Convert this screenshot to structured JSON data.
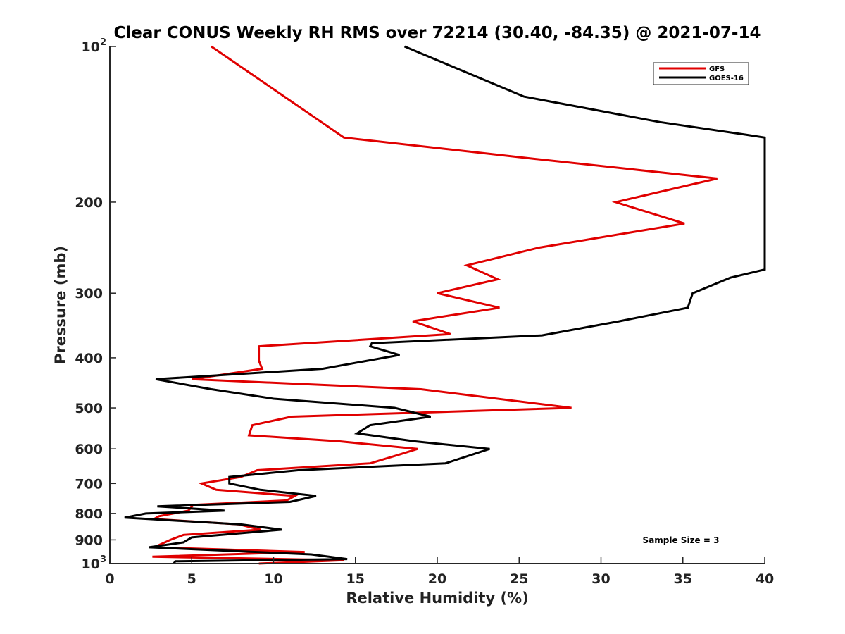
{
  "chart_data": {
    "type": "line",
    "title": "Clear CONUS Weekly RH RMS over 72214 (30.40, -84.35) @ 2021-07-14",
    "xlabel": "Relative Humidity (%)",
    "ylabel": "Pressure (mb)",
    "xlim": [
      0,
      40
    ],
    "ylim": [
      1000,
      100
    ],
    "yscale": "log",
    "grid": false,
    "legend_position": "top-right",
    "x_ticks": [
      0,
      5,
      10,
      15,
      20,
      25,
      30,
      35,
      40
    ],
    "y_ticks": [
      {
        "value": 100,
        "base": "10",
        "exp": "2"
      },
      {
        "value": 200,
        "label": "200"
      },
      {
        "value": 300,
        "label": "300"
      },
      {
        "value": 400,
        "label": "400"
      },
      {
        "value": 500,
        "label": "500"
      },
      {
        "value": 600,
        "label": "600"
      },
      {
        "value": 700,
        "label": "700"
      },
      {
        "value": 800,
        "label": "800"
      },
      {
        "value": 900,
        "label": "900"
      },
      {
        "value": 1000,
        "base": "10",
        "exp": "3"
      }
    ],
    "series": [
      {
        "name": "GFS",
        "color": "#e00000",
        "points": [
          [
            6.2,
            100
          ],
          [
            14.3,
            150
          ],
          [
            26.0,
            165
          ],
          [
            37.1,
            180
          ],
          [
            30.9,
            200
          ],
          [
            35.1,
            220
          ],
          [
            26.2,
            245
          ],
          [
            21.8,
            265
          ],
          [
            23.7,
            282
          ],
          [
            20.0,
            300
          ],
          [
            23.8,
            320
          ],
          [
            18.5,
            340
          ],
          [
            20.8,
            360
          ],
          [
            9.1,
            380
          ],
          [
            9.1,
            405
          ],
          [
            9.3,
            420
          ],
          [
            5.0,
            440
          ],
          [
            19.0,
            460
          ],
          [
            28.2,
            500
          ],
          [
            11.1,
            520
          ],
          [
            8.7,
            540
          ],
          [
            8.5,
            565
          ],
          [
            14.0,
            580
          ],
          [
            18.8,
            600
          ],
          [
            17.5,
            618
          ],
          [
            15.9,
            640
          ],
          [
            9.0,
            660
          ],
          [
            8.0,
            680
          ],
          [
            5.6,
            700
          ],
          [
            6.5,
            720
          ],
          [
            11.3,
            740
          ],
          [
            10.8,
            755
          ],
          [
            5.1,
            770
          ],
          [
            4.8,
            790
          ],
          [
            3.0,
            810
          ],
          [
            2.7,
            820
          ],
          [
            7.9,
            840
          ],
          [
            9.2,
            860
          ],
          [
            4.5,
            880
          ],
          [
            3.7,
            900
          ],
          [
            2.7,
            930
          ],
          [
            11.9,
            950
          ],
          [
            2.6,
            970
          ],
          [
            14.3,
            985
          ],
          [
            9.1,
            1000
          ]
        ]
      },
      {
        "name": "GOES-16",
        "color": "#000000",
        "points": [
          [
            18.0,
            100
          ],
          [
            25.3,
            125
          ],
          [
            33.6,
            140
          ],
          [
            38.8,
            148
          ],
          [
            40.0,
            150
          ],
          [
            40.0,
            270
          ],
          [
            37.9,
            280
          ],
          [
            35.6,
            300
          ],
          [
            35.3,
            320
          ],
          [
            31.1,
            340
          ],
          [
            26.4,
            362
          ],
          [
            16.0,
            375
          ],
          [
            15.9,
            380
          ],
          [
            17.7,
            395
          ],
          [
            13.0,
            420
          ],
          [
            2.8,
            440
          ],
          [
            6.2,
            460
          ],
          [
            10.0,
            480
          ],
          [
            17.4,
            500
          ],
          [
            19.6,
            520
          ],
          [
            15.9,
            540
          ],
          [
            15.1,
            560
          ],
          [
            18.6,
            580
          ],
          [
            23.2,
            600
          ],
          [
            20.5,
            640
          ],
          [
            11.5,
            660
          ],
          [
            7.3,
            680
          ],
          [
            7.3,
            700
          ],
          [
            9.2,
            720
          ],
          [
            12.6,
            740
          ],
          [
            11.0,
            760
          ],
          [
            2.9,
            775
          ],
          [
            7.0,
            790
          ],
          [
            2.2,
            800
          ],
          [
            0.9,
            815
          ],
          [
            8.0,
            840
          ],
          [
            10.5,
            860
          ],
          [
            5.0,
            890
          ],
          [
            4.5,
            910
          ],
          [
            2.4,
            930
          ],
          [
            12.3,
            960
          ],
          [
            14.5,
            980
          ],
          [
            4.0,
            990
          ],
          [
            3.9,
            1000
          ]
        ]
      }
    ],
    "annotations": [
      "Sample Size = 3"
    ]
  }
}
